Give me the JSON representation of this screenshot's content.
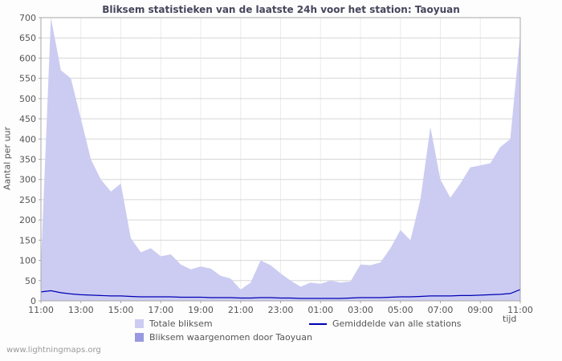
{
  "title": "Bliksem statistieken van de laatste 24h voor het station: Taoyuan",
  "ylabel": "Aantal per uur",
  "xlabel": "tijd",
  "footer": "www.lightningmaps.org",
  "legend": {
    "totale": {
      "label": "Totale bliksem",
      "color": "#ccccf2"
    },
    "gemiddelde": {
      "label": "Gemiddelde van alle stations",
      "color": "#0000b4"
    },
    "taoyuan": {
      "label": "Bliksem waargenomen door Taoyuan",
      "color": "#9999e0"
    }
  },
  "chart_data": {
    "type": "area",
    "title": "Bliksem statistieken van de laatste 24h voor het station: Taoyuan",
    "xlabel": "tijd",
    "ylabel": "Aantal per uur",
    "ylim": [
      0,
      700
    ],
    "y_tick_step": 50,
    "x_ticks": [
      "11:00",
      "13:00",
      "15:00",
      "17:00",
      "19:00",
      "21:00",
      "23:00",
      "01:00",
      "03:00",
      "05:00",
      "07:00",
      "09:00",
      "11:00"
    ],
    "x_step_minutes": 30,
    "grid": true,
    "legend_position": "bottom",
    "colors": {
      "grid": "#d6d6d6",
      "grid_v": "#ececec",
      "axis": "#a8a8a8",
      "plot_bg": "#ffffff"
    },
    "series": [
      {
        "name": "Totale bliksem",
        "type": "area",
        "color": "#ccccf2",
        "values": [
          90,
          700,
          570,
          550,
          450,
          350,
          300,
          270,
          290,
          155,
          120,
          130,
          110,
          115,
          90,
          78,
          85,
          80,
          62,
          55,
          28,
          45,
          100,
          88,
          68,
          50,
          35,
          45,
          42,
          50,
          45,
          48,
          90,
          88,
          95,
          130,
          175,
          150,
          250,
          430,
          300,
          255,
          290,
          330,
          335,
          340,
          380,
          400,
          660
        ]
      },
      {
        "name": "Bliksem waargenomen door Taoyuan",
        "type": "area",
        "color": "#9999e0",
        "values": [
          0,
          0,
          0,
          0,
          0,
          0,
          0,
          0,
          0,
          0,
          0,
          0,
          0,
          0,
          0,
          0,
          0,
          0,
          0,
          0,
          0,
          0,
          0,
          0,
          0,
          0,
          0,
          0,
          0,
          0,
          0,
          0,
          0,
          0,
          0,
          0,
          0,
          0,
          0,
          0,
          0,
          0,
          0,
          0,
          0,
          0,
          0,
          0,
          0
        ]
      },
      {
        "name": "Gemiddelde van alle stations",
        "type": "line",
        "color": "#0000b4",
        "values": [
          22,
          25,
          20,
          17,
          15,
          14,
          13,
          12,
          12,
          11,
          10,
          10,
          10,
          10,
          9,
          9,
          9,
          8,
          8,
          8,
          7,
          7,
          8,
          8,
          7,
          7,
          6,
          6,
          6,
          6,
          6,
          7,
          8,
          8,
          8,
          9,
          10,
          10,
          11,
          12,
          12,
          12,
          13,
          13,
          14,
          15,
          16,
          18,
          28
        ]
      }
    ]
  }
}
